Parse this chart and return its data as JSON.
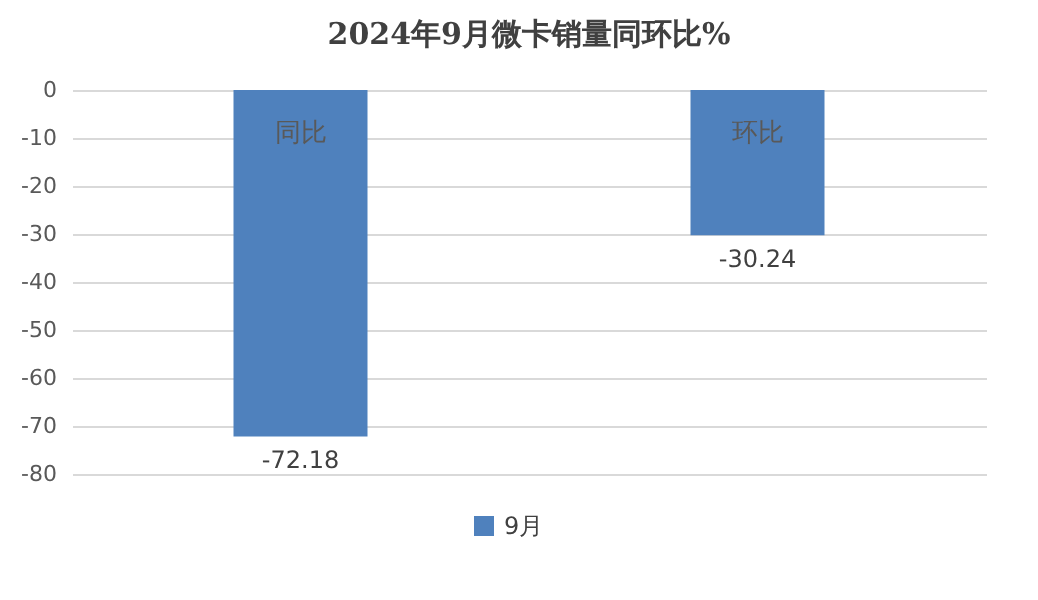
{
  "chart_data": {
    "type": "bar",
    "title": "2024年9月微卡销量同环比%",
    "categories": [
      "同比",
      "环比"
    ],
    "series": [
      {
        "name": "9月",
        "color": "#4f81bd",
        "values": [
          -72.18,
          -30.24
        ]
      }
    ],
    "ylim": [
      -80,
      0
    ],
    "yticks": [
      0,
      -10,
      -20,
      -30,
      -40,
      -50,
      -60,
      -70,
      -80
    ],
    "grid": "y",
    "legend": "bottom",
    "data_labels": true
  }
}
